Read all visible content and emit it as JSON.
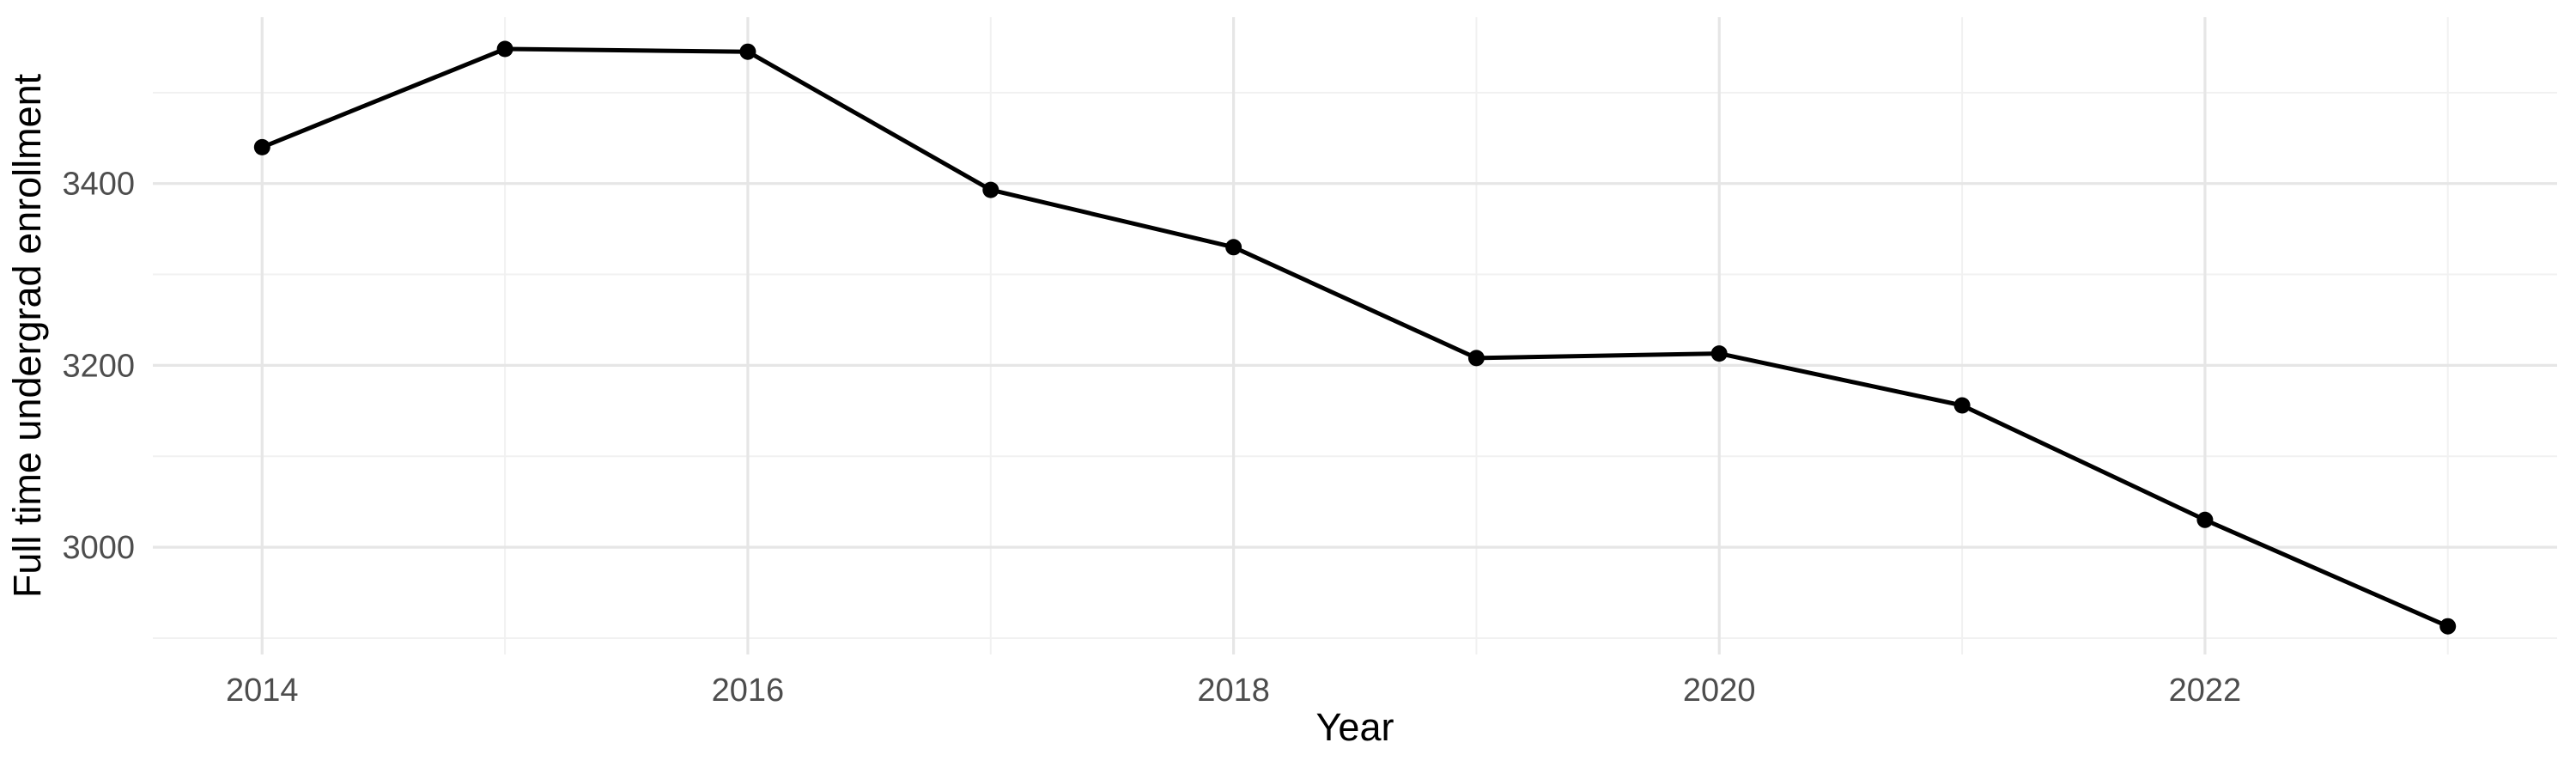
{
  "figure": {
    "background_color": "#FFFFFF"
  },
  "chart_data": {
    "type": "line",
    "title": "",
    "xlabel": "Year",
    "ylabel": "Full time undergrad enrollment",
    "x": [
      2014,
      2015,
      2016,
      2017,
      2018,
      2019,
      2020,
      2021,
      2022,
      2023
    ],
    "series": [
      {
        "name": "Full time undergrad enrollment",
        "values": [
          3440,
          3548,
          3545,
          3393,
          3330,
          3208,
          3213,
          3156,
          3030,
          2913
        ]
      }
    ],
    "xlim": [
      2013.55,
      2023.45
    ],
    "ylim": [
      2882,
      3583
    ],
    "x_major_ticks": [
      2014,
      2016,
      2018,
      2020,
      2022
    ],
    "x_tick_labels": [
      "2014",
      "2016",
      "2018",
      "2020",
      "2022"
    ],
    "x_minor_ticks": [
      2015,
      2017,
      2019,
      2021,
      2023
    ],
    "y_major_ticks": [
      3000,
      3200,
      3400
    ],
    "y_tick_labels": [
      "3000",
      "3200",
      "3400"
    ],
    "y_minor_ticks": [
      2900,
      3100,
      3300,
      3500
    ],
    "grid": true,
    "legend_position": "none",
    "line_color": "#000000",
    "point_color": "#000000",
    "major_grid_color": "#E6E6E6",
    "minor_grid_color": "#F1F1F1",
    "tick_label_color": "#4D4D4D",
    "axis_title_color": "#000000"
  }
}
